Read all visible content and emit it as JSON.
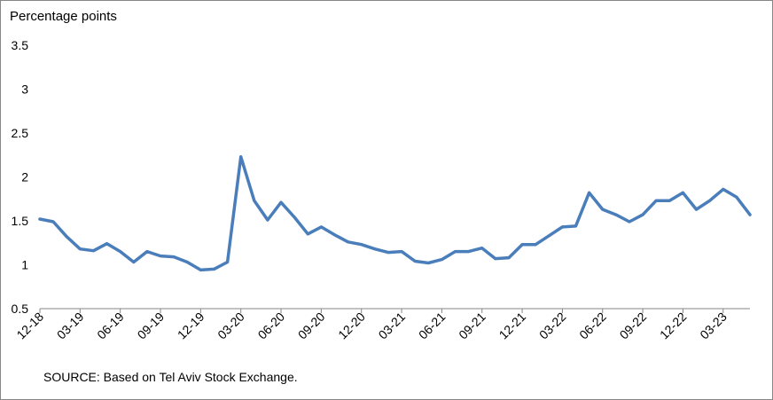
{
  "chart_data": {
    "type": "line",
    "ylabel": "Percentage points",
    "source": "SOURCE: Based on Tel Aviv Stock Exchange.",
    "ylim": [
      0.5,
      3.5
    ],
    "yticks": [
      "0.5",
      "1",
      "1.5",
      "2",
      "2.5",
      "3",
      "3.5"
    ],
    "grid": false,
    "line_color": "#4a7ebb",
    "x_tick_labels": [
      "12-18",
      "03-19",
      "06-19",
      "09-19",
      "12-19",
      "03-20",
      "06-20",
      "09-20",
      "12-20",
      "03-21",
      "06-21",
      "09-21",
      "12-21",
      "03-22",
      "06-22",
      "09-22",
      "12-22",
      "03-23"
    ],
    "x": [
      "12-18",
      "01-19",
      "02-19",
      "03-19",
      "04-19",
      "05-19",
      "06-19",
      "07-19",
      "08-19",
      "09-19",
      "10-19",
      "11-19",
      "12-19",
      "01-20",
      "02-20",
      "03-20",
      "04-20",
      "05-20",
      "06-20",
      "07-20",
      "08-20",
      "09-20",
      "10-20",
      "11-20",
      "12-20",
      "01-21",
      "02-21",
      "03-21",
      "04-21",
      "05-21",
      "06-21",
      "07-21",
      "08-21",
      "09-21",
      "10-21",
      "11-21",
      "12-21",
      "01-22",
      "02-22",
      "03-22",
      "04-22",
      "05-22",
      "06-22",
      "07-22",
      "08-22",
      "09-22",
      "10-22",
      "11-22",
      "12-22",
      "01-23",
      "02-23",
      "03-23",
      "04-23",
      "05-23"
    ],
    "values": [
      1.52,
      1.49,
      1.32,
      1.18,
      1.16,
      1.24,
      1.15,
      1.03,
      1.15,
      1.1,
      1.09,
      1.03,
      0.94,
      0.95,
      1.03,
      2.23,
      1.73,
      1.51,
      1.71,
      1.54,
      1.35,
      1.43,
      1.34,
      1.26,
      1.23,
      1.18,
      1.14,
      1.15,
      1.04,
      1.02,
      1.06,
      1.15,
      1.15,
      1.19,
      1.07,
      1.08,
      1.23,
      1.23,
      1.33,
      1.43,
      1.44,
      1.82,
      1.63,
      1.57,
      1.49,
      1.57,
      1.73,
      1.73,
      1.82,
      1.63,
      1.73,
      1.86,
      1.77,
      1.57
    ]
  }
}
